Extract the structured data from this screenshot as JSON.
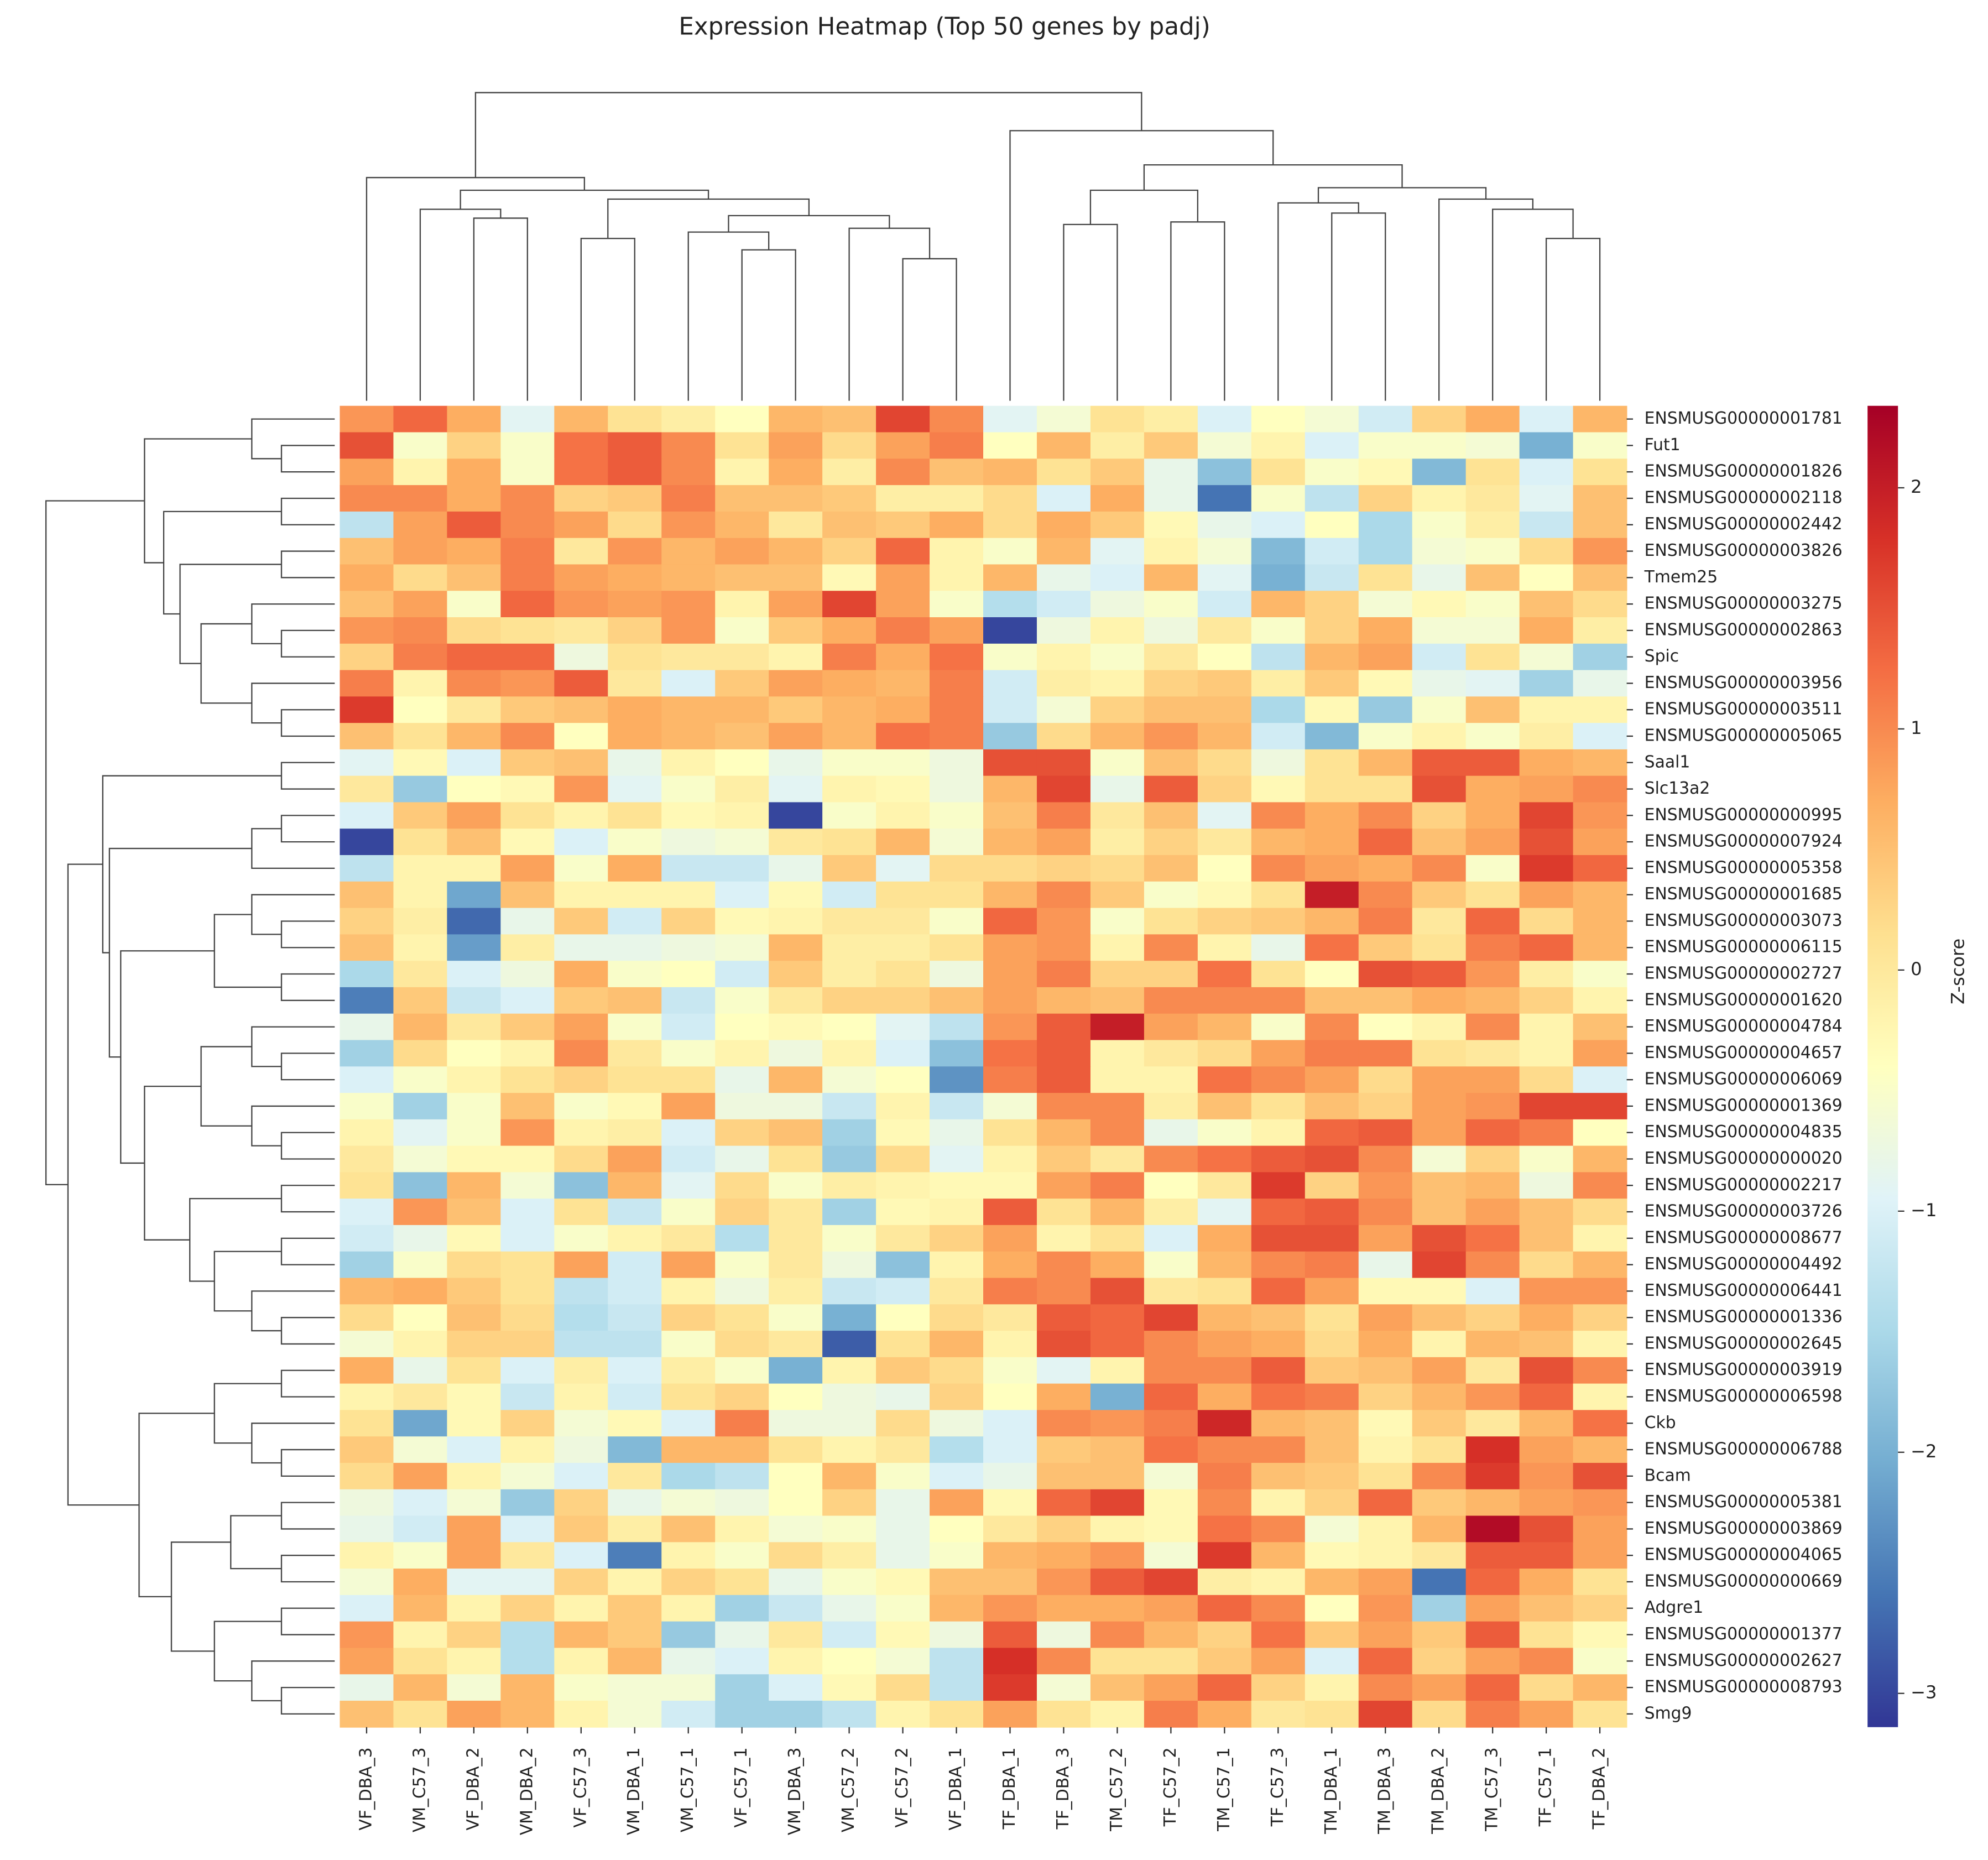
{
  "chart_data": {
    "type": "heatmap",
    "title": "Expression Heatmap (Top 50 genes by padj)",
    "colorbar_label": "Z-score",
    "colormap": "RdYlBu_r",
    "zlim": [
      -3.14,
      2.34
    ],
    "zticks": [
      {
        "value": -3,
        "label": "−3"
      },
      {
        "value": -2,
        "label": "−2"
      },
      {
        "value": -1,
        "label": "−1"
      },
      0,
      1,
      2
    ],
    "columns": [
      "VF_DBA_3",
      "VM_C57_3",
      "VF_DBA_2",
      "VM_DBA_2",
      "VF_C57_3",
      "VM_DBA_1",
      "VM_C57_1",
      "VF_C57_1",
      "VM_DBA_3",
      "VM_C57_2",
      "VF_C57_2",
      "VF_DBA_1",
      "TF_DBA_1",
      "TF_DBA_3",
      "TM_C57_2",
      "TF_C57_2",
      "TM_C57_1",
      "TF_C57_3",
      "TM_DBA_1",
      "TM_DBA_3",
      "TM_DBA_2",
      "TM_C57_3",
      "TF_C57_1",
      "TF_DBA_2"
    ],
    "rows": [
      "ENSMUSG00000001781",
      "Fut1",
      "ENSMUSG00000001826",
      "ENSMUSG00000002118",
      "ENSMUSG00000002442",
      "ENSMUSG00000003826",
      "Tmem25",
      "ENSMUSG00000003275",
      "ENSMUSG00000002863",
      "Spic",
      "ENSMUSG00000003956",
      "ENSMUSG00000003511",
      "ENSMUSG00000005065",
      "Saal1",
      "Slc13a2",
      "ENSMUSG00000000995",
      "ENSMUSG00000007924",
      "ENSMUSG00000005358",
      "ENSMUSG00000001685",
      "ENSMUSG00000003073",
      "ENSMUSG00000006115",
      "ENSMUSG00000002727",
      "ENSMUSG00000001620",
      "ENSMUSG00000004784",
      "ENSMUSG00000004657",
      "ENSMUSG00000006069",
      "ENSMUSG00000001369",
      "ENSMUSG00000004835",
      "ENSMUSG00000000020",
      "ENSMUSG00000002217",
      "ENSMUSG00000003726",
      "ENSMUSG00000008677",
      "ENSMUSG00000004492",
      "ENSMUSG00000006441",
      "ENSMUSG00000001336",
      "ENSMUSG00000002645",
      "ENSMUSG00000003919",
      "ENSMUSG00000006598",
      "Ckb",
      "ENSMUSG00000006788",
      "Bcam",
      "ENSMUSG00000005381",
      "ENSMUSG00000003869",
      "ENSMUSG00000004065",
      "ENSMUSG00000000669",
      "Adgre1",
      "ENSMUSG00000001377",
      "ENSMUSG00000002627",
      "ENSMUSG00000008793",
      "Smg9"
    ],
    "values": [
      [
        0.9,
        1.3,
        0.7,
        -0.9,
        0.6,
        0.1,
        -0.1,
        -0.4,
        0.6,
        0.5,
        1.6,
        1.0,
        -0.9,
        -0.6,
        0.1,
        -0.1,
        -1.0,
        -0.4,
        -0.6,
        -1.1,
        0.3,
        0.7,
        -1.0,
        0.6
      ],
      [
        1.5,
        -0.5,
        0.3,
        -0.5,
        1.2,
        1.4,
        1.0,
        0.1,
        0.8,
        0.2,
        0.8,
        1.1,
        -0.4,
        0.6,
        -0.1,
        0.4,
        -0.6,
        -0.2,
        -1.0,
        -0.5,
        -0.5,
        -0.6,
        -2.0,
        -0.5
      ],
      [
        0.8,
        -0.2,
        0.7,
        -0.5,
        1.2,
        1.4,
        1.0,
        -0.2,
        0.7,
        -0.1,
        1.0,
        0.5,
        0.6,
        0.1,
        0.4,
        -0.8,
        -1.8,
        0.1,
        -0.5,
        -0.3,
        -1.9,
        0.1,
        -1.0,
        0.1
      ],
      [
        1.0,
        1.0,
        0.7,
        1.0,
        0.3,
        0.4,
        1.1,
        0.5,
        0.5,
        0.4,
        -0.1,
        -0.1,
        0.2,
        -1.0,
        0.7,
        -0.8,
        -2.6,
        -0.5,
        -1.3,
        0.3,
        -0.2,
        0.0,
        -0.9,
        0.5
      ],
      [
        -1.3,
        0.8,
        1.4,
        1.0,
        0.8,
        0.2,
        0.9,
        0.6,
        0.0,
        0.5,
        0.4,
        0.7,
        0.2,
        0.7,
        0.4,
        -0.3,
        -0.8,
        -1.0,
        -0.4,
        -1.5,
        -0.5,
        -0.1,
        -1.2,
        0.5
      ],
      [
        0.5,
        0.8,
        0.7,
        1.1,
        0.0,
        0.9,
        0.6,
        0.8,
        0.6,
        0.3,
        1.3,
        -0.2,
        -0.5,
        0.6,
        -0.9,
        -0.2,
        -0.6,
        -1.9,
        -1.1,
        -1.5,
        -0.6,
        -0.5,
        0.2,
        0.9
      ],
      [
        0.7,
        0.2,
        0.5,
        1.1,
        0.8,
        0.7,
        0.6,
        0.5,
        0.5,
        -0.3,
        0.8,
        -0.2,
        0.6,
        -0.8,
        -1.0,
        0.6,
        -0.9,
        -2.0,
        -1.2,
        0.1,
        -0.8,
        0.5,
        -0.4,
        0.5
      ],
      [
        0.5,
        0.8,
        -0.5,
        1.3,
        0.9,
        0.8,
        0.9,
        -0.2,
        0.8,
        1.6,
        0.8,
        -0.5,
        -1.4,
        -1.1,
        -0.7,
        -0.5,
        -1.1,
        0.6,
        0.3,
        -0.6,
        -0.3,
        -0.5,
        0.5,
        0.2
      ],
      [
        0.9,
        1.0,
        0.2,
        0.1,
        0.0,
        0.3,
        0.9,
        -0.5,
        0.4,
        0.7,
        1.1,
        0.8,
        -3.0,
        -0.7,
        -0.2,
        -0.7,
        0.0,
        -0.5,
        0.3,
        0.7,
        -0.6,
        -0.6,
        0.7,
        -0.1
      ],
      [
        0.3,
        1.1,
        1.3,
        1.3,
        -0.7,
        0.1,
        0.0,
        0.0,
        -0.2,
        1.1,
        0.7,
        1.2,
        -0.5,
        -0.2,
        -0.5,
        0.0,
        -0.4,
        -1.3,
        0.6,
        0.8,
        -1.1,
        0.1,
        -0.6,
        -1.6
      ],
      [
        1.1,
        -0.2,
        1.0,
        0.9,
        1.4,
        0.0,
        -1.0,
        0.4,
        0.8,
        0.7,
        0.6,
        1.1,
        -1.1,
        -0.1,
        -0.2,
        0.3,
        0.4,
        -0.1,
        0.4,
        -0.3,
        -0.8,
        -0.9,
        -1.6,
        -0.8
      ],
      [
        1.7,
        -0.4,
        0.0,
        0.4,
        0.5,
        0.7,
        0.6,
        0.6,
        0.4,
        0.6,
        0.7,
        1.1,
        -1.1,
        -0.6,
        0.3,
        0.5,
        0.5,
        -1.5,
        -0.3,
        -1.7,
        -0.5,
        0.5,
        -0.2,
        -0.2
      ],
      [
        0.5,
        0.1,
        0.6,
        1.0,
        -0.4,
        0.7,
        0.6,
        0.5,
        0.8,
        0.6,
        1.2,
        1.1,
        -1.7,
        0.2,
        0.6,
        0.9,
        0.6,
        -1.1,
        -1.9,
        -0.5,
        -0.2,
        -0.5,
        -0.1,
        -1.0
      ],
      [
        -0.9,
        -0.3,
        -1.0,
        0.4,
        0.5,
        -0.8,
        -0.2,
        -0.4,
        -0.8,
        -0.5,
        -0.5,
        -0.7,
        1.5,
        1.5,
        -0.5,
        0.5,
        0.2,
        -0.7,
        0.1,
        0.6,
        1.4,
        1.4,
        0.7,
        0.6
      ],
      [
        0.0,
        -1.7,
        -0.4,
        -0.3,
        0.9,
        -0.9,
        -0.5,
        -0.1,
        -0.9,
        -0.2,
        -0.3,
        -0.7,
        0.6,
        1.6,
        -0.8,
        1.4,
        0.3,
        -0.3,
        0.1,
        0.1,
        1.5,
        0.7,
        0.8,
        1.0
      ],
      [
        -1.0,
        0.4,
        0.8,
        0.1,
        -0.2,
        0.1,
        -0.3,
        -0.2,
        -3.0,
        -0.5,
        -0.2,
        -0.5,
        0.5,
        1.1,
        0.0,
        0.5,
        -0.9,
        1.0,
        0.7,
        1.0,
        0.3,
        0.7,
        1.6,
        0.9
      ],
      [
        -3.0,
        0.1,
        0.5,
        -0.3,
        -1.0,
        -0.5,
        -0.7,
        -0.6,
        0.0,
        0.1,
        0.6,
        -0.6,
        0.6,
        0.8,
        -0.1,
        0.3,
        0.0,
        0.6,
        0.7,
        1.3,
        0.5,
        0.8,
        1.5,
        0.8
      ],
      [
        -1.3,
        -0.2,
        -0.2,
        0.8,
        -0.5,
        0.7,
        -1.2,
        -1.2,
        -0.8,
        0.4,
        -0.9,
        0.2,
        0.2,
        0.3,
        0.2,
        0.5,
        -0.4,
        1.0,
        0.8,
        0.7,
        1.0,
        -0.5,
        1.7,
        1.3
      ],
      [
        0.5,
        -0.2,
        -2.1,
        0.5,
        -0.2,
        -0.2,
        -0.2,
        -1.0,
        -0.3,
        -1.1,
        0.1,
        0.1,
        0.6,
        1.0,
        0.4,
        -0.5,
        -0.3,
        0.1,
        2.0,
        1.0,
        0.4,
        0.1,
        0.8,
        0.6
      ],
      [
        0.3,
        -0.1,
        -2.7,
        -0.8,
        0.4,
        -1.1,
        0.3,
        -0.3,
        -0.2,
        0.0,
        0.0,
        -0.5,
        1.3,
        0.9,
        -0.5,
        0.1,
        0.3,
        0.4,
        0.6,
        1.1,
        0.0,
        1.3,
        0.2,
        0.6
      ],
      [
        0.5,
        -0.2,
        -2.2,
        -0.1,
        -0.8,
        -0.8,
        -0.7,
        -0.6,
        0.6,
        -0.1,
        -0.1,
        0.1,
        0.8,
        0.9,
        -0.2,
        1.0,
        -0.2,
        -0.8,
        1.2,
        0.4,
        0.1,
        1.1,
        1.3,
        0.6
      ],
      [
        -1.5,
        0.0,
        -1.0,
        -0.7,
        0.7,
        -0.5,
        -0.4,
        -1.1,
        0.4,
        -0.1,
        0.1,
        -0.7,
        0.8,
        1.1,
        0.3,
        0.3,
        1.2,
        0.1,
        -0.4,
        1.5,
        1.4,
        0.9,
        -0.1,
        -0.5
      ],
      [
        -2.5,
        0.4,
        -1.2,
        -1.0,
        0.4,
        0.5,
        -1.2,
        -0.5,
        0.0,
        0.3,
        0.3,
        0.5,
        0.8,
        0.6,
        0.5,
        1.0,
        1.0,
        1.0,
        0.5,
        0.5,
        0.7,
        0.6,
        0.3,
        -0.2
      ],
      [
        -0.8,
        0.6,
        0.0,
        0.4,
        0.8,
        -0.5,
        -1.1,
        -0.4,
        -0.3,
        -0.4,
        -0.9,
        -1.3,
        0.9,
        1.4,
        2.0,
        0.8,
        0.6,
        -0.5,
        1.0,
        -0.4,
        -0.2,
        1.0,
        -0.2,
        0.5
      ],
      [
        -1.6,
        0.2,
        -0.4,
        -0.2,
        1.0,
        0.0,
        -0.5,
        -0.2,
        -0.7,
        -0.2,
        -1.0,
        -1.8,
        1.2,
        1.4,
        -0.2,
        0.0,
        0.2,
        0.8,
        1.1,
        1.1,
        0.1,
        0.0,
        -0.2,
        0.8
      ],
      [
        -1.0,
        -0.5,
        -0.2,
        0.1,
        0.3,
        0.1,
        0.1,
        -0.8,
        0.6,
        -0.6,
        -0.4,
        -2.3,
        1.1,
        1.4,
        -0.2,
        -0.2,
        1.2,
        1.0,
        0.8,
        0.2,
        0.8,
        0.8,
        0.2,
        -1.0
      ],
      [
        -0.5,
        -1.6,
        -0.5,
        0.5,
        -0.5,
        -0.3,
        0.8,
        -0.7,
        -0.7,
        -1.2,
        -0.2,
        -1.2,
        -0.6,
        1.0,
        1.0,
        -0.1,
        0.5,
        0.1,
        0.5,
        0.3,
        0.8,
        0.9,
        1.6,
        1.6
      ],
      [
        -0.2,
        -0.9,
        -0.5,
        0.9,
        -0.2,
        -0.1,
        -1.0,
        0.3,
        0.5,
        -1.6,
        -0.3,
        -0.8,
        0.1,
        0.6,
        1.0,
        -0.8,
        -0.5,
        -0.2,
        1.3,
        1.4,
        0.8,
        1.3,
        1.1,
        -0.4
      ],
      [
        0.0,
        -0.6,
        -0.3,
        -0.3,
        0.2,
        0.8,
        -1.1,
        -0.8,
        0.1,
        -1.7,
        0.2,
        -0.9,
        -0.2,
        0.4,
        0.0,
        1.0,
        1.2,
        1.4,
        1.5,
        1.0,
        -0.6,
        0.3,
        -0.5,
        0.6
      ],
      [
        0.1,
        -1.8,
        0.6,
        -0.6,
        -1.8,
        0.6,
        -0.9,
        0.2,
        -0.5,
        -0.1,
        -0.2,
        -0.3,
        -0.3,
        0.8,
        1.1,
        -0.4,
        0.0,
        1.7,
        0.3,
        0.9,
        0.5,
        0.6,
        -0.7,
        1.0
      ],
      [
        -1.0,
        0.9,
        0.5,
        -1.0,
        0.1,
        -1.2,
        -0.5,
        0.3,
        0.0,
        -1.6,
        -0.3,
        -0.2,
        1.4,
        0.1,
        0.6,
        -0.1,
        -0.9,
        1.3,
        1.4,
        1.0,
        0.5,
        0.8,
        0.5,
        0.2
      ],
      [
        -1.1,
        -0.8,
        -0.3,
        -1.0,
        -0.5,
        -0.2,
        0.0,
        -1.4,
        0.0,
        -0.5,
        0.0,
        0.3,
        0.8,
        -0.2,
        0.1,
        -1.0,
        0.7,
        1.5,
        1.5,
        0.8,
        1.5,
        1.2,
        0.5,
        -0.2
      ],
      [
        -1.6,
        -0.5,
        0.2,
        0.1,
        0.8,
        -1.1,
        0.8,
        -0.5,
        0.0,
        -0.7,
        -1.8,
        -0.2,
        0.7,
        1.0,
        0.7,
        -0.5,
        0.6,
        1.0,
        1.1,
        -0.8,
        1.6,
        1.0,
        0.2,
        0.6
      ],
      [
        0.6,
        0.7,
        0.4,
        0.1,
        -1.3,
        -1.1,
        -0.2,
        -0.7,
        -0.1,
        -1.2,
        -1.1,
        0.0,
        1.1,
        1.0,
        1.5,
        0.0,
        0.1,
        1.3,
        0.8,
        -0.3,
        -0.3,
        -1.0,
        0.9,
        0.9
      ],
      [
        0.2,
        -0.4,
        0.5,
        0.2,
        -1.4,
        -1.2,
        0.3,
        0.1,
        -0.5,
        -2.0,
        -0.4,
        0.2,
        0.0,
        1.4,
        1.3,
        1.6,
        0.6,
        0.5,
        0.1,
        0.8,
        0.5,
        0.3,
        0.7,
        0.3
      ],
      [
        -0.6,
        -0.2,
        0.3,
        0.3,
        -1.3,
        -1.3,
        -0.5,
        0.2,
        0.0,
        -2.8,
        0.1,
        0.6,
        -0.2,
        1.5,
        1.3,
        1.0,
        0.8,
        0.7,
        0.2,
        0.7,
        -0.2,
        0.6,
        0.5,
        -0.2
      ],
      [
        0.7,
        -0.8,
        0.1,
        -1.0,
        -0.1,
        -1.0,
        -0.1,
        -0.5,
        -2.0,
        -0.2,
        0.4,
        0.2,
        -0.5,
        -0.9,
        -0.2,
        1.0,
        1.0,
        1.4,
        0.4,
        0.5,
        0.8,
        0.0,
        1.5,
        1.0
      ],
      [
        -0.2,
        0.0,
        -0.3,
        -1.2,
        -0.2,
        -1.1,
        0.1,
        0.3,
        -0.4,
        -0.7,
        -0.8,
        0.3,
        -0.4,
        0.7,
        -2.0,
        1.3,
        0.7,
        1.2,
        1.1,
        0.3,
        0.6,
        0.9,
        1.3,
        -0.2
      ],
      [
        0.1,
        -2.1,
        -0.3,
        0.3,
        -0.6,
        -0.3,
        -1.0,
        1.1,
        -0.7,
        -0.7,
        0.2,
        -0.7,
        -1.0,
        1.0,
        0.9,
        1.1,
        1.9,
        0.6,
        0.5,
        -0.3,
        0.4,
        0.0,
        0.6,
        1.2
      ],
      [
        0.4,
        -0.6,
        -1.0,
        -0.2,
        -0.7,
        -1.9,
        0.6,
        0.6,
        0.1,
        -0.2,
        0.0,
        -1.4,
        -1.0,
        0.4,
        0.5,
        1.2,
        1.0,
        1.0,
        0.5,
        -0.2,
        0.1,
        1.8,
        0.8,
        0.6
      ],
      [
        0.2,
        0.8,
        -0.2,
        -0.6,
        -1.0,
        0.0,
        -1.5,
        -1.3,
        -0.4,
        0.6,
        -0.5,
        -1.0,
        -0.8,
        0.5,
        0.5,
        -0.6,
        1.1,
        0.5,
        0.4,
        0.1,
        1.0,
        1.7,
        0.9,
        1.5
      ],
      [
        -0.7,
        -1.0,
        -0.6,
        -1.7,
        0.3,
        -0.8,
        -0.6,
        -0.7,
        -0.4,
        0.3,
        -0.8,
        0.8,
        -0.3,
        1.3,
        1.6,
        -0.3,
        1.0,
        -0.2,
        0.3,
        1.3,
        0.4,
        0.6,
        0.8,
        0.9
      ],
      [
        -0.8,
        -1.1,
        0.8,
        -1.0,
        0.4,
        -0.1,
        0.5,
        -0.2,
        -0.6,
        -0.5,
        -0.8,
        -0.4,
        0.0,
        0.3,
        -0.2,
        -0.3,
        1.2,
        1.0,
        -0.6,
        -0.2,
        0.6,
        2.2,
        1.5,
        0.8
      ],
      [
        -0.2,
        -0.5,
        0.8,
        0.0,
        -1.0,
        -2.5,
        -0.2,
        -0.5,
        0.2,
        -0.1,
        -0.8,
        -0.5,
        0.6,
        0.7,
        0.9,
        -0.6,
        1.7,
        0.6,
        -0.3,
        -0.2,
        0.0,
        1.4,
        1.4,
        0.8
      ],
      [
        -0.6,
        0.7,
        -0.9,
        -0.9,
        0.3,
        -0.2,
        0.3,
        0.1,
        -0.8,
        -0.5,
        -0.3,
        0.5,
        0.5,
        0.9,
        1.4,
        1.6,
        -0.1,
        -0.2,
        0.6,
        0.8,
        -2.6,
        1.3,
        0.7,
        0.1
      ],
      [
        -1.0,
        0.6,
        -0.2,
        0.3,
        -0.2,
        0.4,
        -0.2,
        -1.6,
        -1.2,
        -0.8,
        -0.5,
        0.6,
        0.9,
        0.7,
        0.7,
        0.8,
        1.3,
        1.0,
        -0.4,
        0.9,
        -1.6,
        0.8,
        0.5,
        0.3
      ],
      [
        0.9,
        -0.2,
        0.3,
        -1.4,
        0.6,
        0.4,
        -1.7,
        -0.8,
        0.0,
        -1.1,
        -0.3,
        -0.7,
        1.4,
        -0.7,
        1.0,
        0.6,
        0.3,
        1.2,
        0.4,
        0.8,
        0.4,
        1.4,
        0.1,
        -0.3
      ],
      [
        0.8,
        0.1,
        -0.2,
        -1.4,
        -0.2,
        0.6,
        -0.8,
        -1.0,
        -0.2,
        -0.4,
        -0.6,
        -1.3,
        1.8,
        1.0,
        0.1,
        0.1,
        0.4,
        0.8,
        -1.0,
        1.3,
        0.3,
        0.8,
        1.0,
        -0.5
      ],
      [
        -0.8,
        0.6,
        -0.6,
        0.6,
        -0.5,
        -0.6,
        -0.6,
        -1.6,
        -1.0,
        -0.3,
        0.2,
        -1.3,
        1.7,
        -0.6,
        0.5,
        0.8,
        1.3,
        0.3,
        -0.2,
        1.0,
        0.8,
        1.3,
        0.2,
        0.6
      ],
      [
        0.5,
        0.1,
        0.8,
        0.6,
        -0.2,
        -0.6,
        -1.1,
        -1.6,
        -1.6,
        -1.3,
        -0.2,
        0.1,
        0.8,
        0.1,
        -0.2,
        1.1,
        0.7,
        0.0,
        0.1,
        1.6,
        0.2,
        1.1,
        0.8,
        0.1
      ]
    ]
  }
}
